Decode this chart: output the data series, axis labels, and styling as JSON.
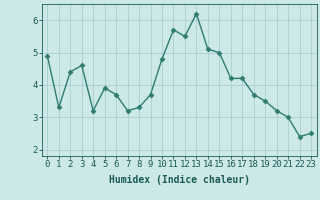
{
  "x": [
    0,
    1,
    2,
    3,
    4,
    5,
    6,
    7,
    8,
    9,
    10,
    11,
    12,
    13,
    14,
    15,
    16,
    17,
    18,
    19,
    20,
    21,
    22,
    23
  ],
  "y": [
    4.9,
    3.3,
    4.4,
    4.6,
    3.2,
    3.9,
    3.7,
    3.2,
    3.3,
    3.7,
    4.8,
    5.7,
    5.5,
    6.2,
    5.1,
    5.0,
    4.2,
    4.2,
    3.7,
    3.5,
    3.2,
    3.0,
    2.4,
    2.5
  ],
  "line_color": "#2e7d6e",
  "bg_color": "#cce8e8",
  "grid_color": "#aacfcf",
  "xlabel": "Humidex (Indice chaleur)",
  "xlim": [
    -0.5,
    23.5
  ],
  "ylim": [
    1.8,
    6.5
  ],
  "yticks": [
    2,
    3,
    4,
    5,
    6
  ],
  "xticks": [
    0,
    1,
    2,
    3,
    4,
    5,
    6,
    7,
    8,
    9,
    10,
    11,
    12,
    13,
    14,
    15,
    16,
    17,
    18,
    19,
    20,
    21,
    22,
    23
  ],
  "marker": "D",
  "markersize": 2.5,
  "linewidth": 1.0,
  "xlabel_fontsize": 7,
  "tick_fontsize": 6.5,
  "tick_color": "#1a5c52",
  "axis_color": "#1a5c52"
}
